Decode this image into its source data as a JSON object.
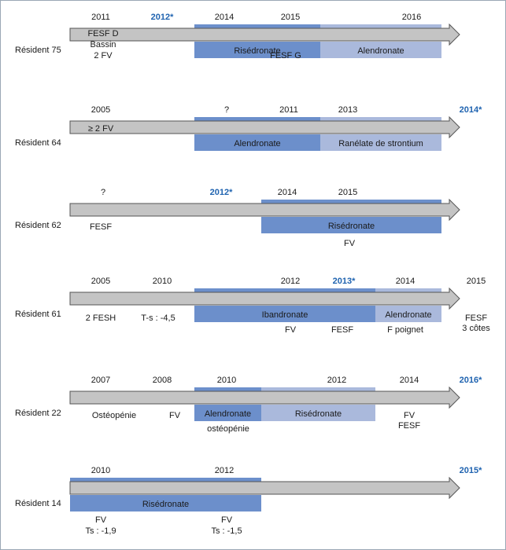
{
  "colors": {
    "arrow_fill": "#c4c4c4",
    "arrow_stroke": "#555555",
    "drug_dark": "#6c8fcb",
    "drug_light": "#aab9dc",
    "highlight_text": "#1f63b0"
  },
  "residents": [
    {
      "label": "Résident 75",
      "years": [
        {
          "text": "2011",
          "hl": false
        },
        {
          "text": "2012*",
          "hl": true
        },
        {
          "text": "2014",
          "hl": false
        },
        {
          "text": "2015",
          "hl": false
        },
        {
          "text": "2016",
          "hl": false
        }
      ],
      "treatments": [
        {
          "name": "Risédronate",
          "shade": "dark"
        },
        {
          "name": "Alendronate",
          "shade": "light"
        }
      ],
      "events": [
        {
          "text": "FESF D"
        },
        {
          "text": "Bassin"
        },
        {
          "text": "2 FV"
        },
        {
          "text": "FESF G"
        }
      ]
    },
    {
      "label": "Résident 64",
      "years": [
        {
          "text": "2005",
          "hl": false
        },
        {
          "text": "?",
          "hl": false
        },
        {
          "text": "2011",
          "hl": false
        },
        {
          "text": "2013",
          "hl": false
        },
        {
          "text": "2014*",
          "hl": true
        }
      ],
      "treatments": [
        {
          "name": "Alendronate",
          "shade": "dark"
        },
        {
          "name": "Ranélate de strontium",
          "shade": "light"
        }
      ],
      "events": [
        {
          "text": "≥ 2 FV"
        }
      ]
    },
    {
      "label": "Résident 62",
      "years": [
        {
          "text": "?",
          "hl": false
        },
        {
          "text": "2012*",
          "hl": true
        },
        {
          "text": "2014",
          "hl": false
        },
        {
          "text": "2015",
          "hl": false
        }
      ],
      "treatments": [
        {
          "name": "Risédronate",
          "shade": "dark"
        }
      ],
      "events": [
        {
          "text": "FESF"
        },
        {
          "text": "FV"
        }
      ]
    },
    {
      "label": "Résident 61",
      "years": [
        {
          "text": "2005",
          "hl": false
        },
        {
          "text": "2010",
          "hl": false
        },
        {
          "text": "2012",
          "hl": false
        },
        {
          "text": "2013*",
          "hl": true
        },
        {
          "text": "2014",
          "hl": false
        },
        {
          "text": "2015",
          "hl": false
        }
      ],
      "treatments": [
        {
          "name": "Ibandronate",
          "shade": "dark"
        },
        {
          "name": "Alendronate",
          "shade": "light"
        }
      ],
      "events": [
        {
          "text": "2 FESH"
        },
        {
          "text": "T-s : -4,5"
        },
        {
          "text": "FV"
        },
        {
          "text": "FESF"
        },
        {
          "text": "F poignet"
        },
        {
          "text": "FESF"
        },
        {
          "text": "3 côtes"
        }
      ]
    },
    {
      "label": "Résident 22",
      "years": [
        {
          "text": "2007",
          "hl": false
        },
        {
          "text": "2008",
          "hl": false
        },
        {
          "text": "2010",
          "hl": false
        },
        {
          "text": "2012",
          "hl": false
        },
        {
          "text": "2014",
          "hl": false
        },
        {
          "text": "2016*",
          "hl": true
        }
      ],
      "treatments": [
        {
          "name": "Alendronate",
          "shade": "dark"
        },
        {
          "name": "Risédronate",
          "shade": "light"
        }
      ],
      "events": [
        {
          "text": "Ostéopénie"
        },
        {
          "text": "FV"
        },
        {
          "text": "ostéopénie"
        },
        {
          "text": "FV"
        },
        {
          "text": "FESF"
        }
      ]
    },
    {
      "label": "Résident 14",
      "years": [
        {
          "text": "2010",
          "hl": false
        },
        {
          "text": "2012",
          "hl": false
        },
        {
          "text": "2015*",
          "hl": true
        }
      ],
      "treatments": [
        {
          "name": "Risédronate",
          "shade": "dark"
        }
      ],
      "events": [
        {
          "text": "FV"
        },
        {
          "text": "Ts : -1,9"
        },
        {
          "text": "FV"
        },
        {
          "text": "Ts : -1,5"
        }
      ]
    }
  ]
}
